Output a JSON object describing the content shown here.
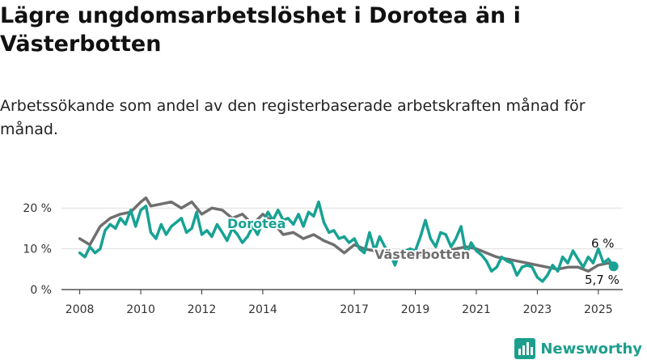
{
  "title": "Lägre ungdomsarbetslöshet i Dorotea än i Västerbotten",
  "subtitle": "Arbetssökande som andel av den registerbaserade arbetskraften månad för månad.",
  "brand": {
    "name": "Newsworthy",
    "icon": "bar-chart-logo-icon",
    "color": "#1c9e8c"
  },
  "chart_data": {
    "type": "line",
    "ylim": [
      0,
      25
    ],
    "xlim": [
      2007.4,
      2025.8
    ],
    "yticks": [
      0,
      10,
      20
    ],
    "ytick_labels": [
      "0 %",
      "10 %",
      "20 %"
    ],
    "xticks": [
      2008,
      2010,
      2012,
      2014,
      2017,
      2019,
      2021,
      2023,
      2025
    ],
    "xtick_labels": [
      "2008",
      "2010",
      "2012",
      "2014",
      "2017",
      "2019",
      "2021",
      "2023",
      "2025"
    ],
    "grid": true,
    "series": [
      {
        "name": "Västerbotten",
        "color": "#6f6f6f",
        "end_label": "6 %",
        "x": [
          2008.0,
          2008.33,
          2008.67,
          2009.0,
          2009.33,
          2009.67,
          2010.0,
          2010.17,
          2010.33,
          2010.67,
          2011.0,
          2011.33,
          2011.67,
          2012.0,
          2012.33,
          2012.67,
          2013.0,
          2013.33,
          2013.67,
          2014.0,
          2014.33,
          2014.67,
          2015.0,
          2015.33,
          2015.67,
          2016.0,
          2016.33,
          2016.67,
          2017.0,
          2017.33,
          2017.67,
          2018.0,
          2018.33,
          2018.67,
          2019.0,
          2019.33,
          2019.67,
          2020.0,
          2020.33,
          2020.67,
          2021.0,
          2021.33,
          2021.67,
          2022.0,
          2022.33,
          2022.67,
          2023.0,
          2023.33,
          2023.67,
          2024.0,
          2024.33,
          2024.67,
          2025.0,
          2025.33,
          2025.5
        ],
        "values": [
          12.5,
          11.0,
          15.5,
          17.5,
          18.5,
          19.0,
          21.5,
          22.5,
          20.5,
          21.0,
          21.5,
          20.0,
          21.5,
          18.5,
          20.0,
          19.5,
          17.5,
          18.5,
          16.0,
          18.5,
          16.5,
          13.5,
          14.0,
          12.5,
          13.5,
          12.0,
          11.0,
          9.0,
          11.0,
          10.0,
          9.5,
          9.0,
          9.0,
          8.5,
          8.0,
          9.0,
          8.5,
          9.5,
          10.0,
          10.5,
          10.0,
          9.0,
          8.0,
          7.5,
          7.0,
          6.5,
          6.0,
          5.5,
          5.0,
          5.5,
          5.5,
          4.5,
          6.0,
          6.5,
          6.0
        ]
      },
      {
        "name": "Dorotea",
        "color": "#17a293",
        "end_label": "5,7 %",
        "x": [
          2008.0,
          2008.17,
          2008.33,
          2008.5,
          2008.67,
          2008.83,
          2009.0,
          2009.17,
          2009.33,
          2009.5,
          2009.67,
          2009.83,
          2010.0,
          2010.17,
          2010.33,
          2010.5,
          2010.67,
          2010.83,
          2011.0,
          2011.17,
          2011.33,
          2011.5,
          2011.67,
          2011.83,
          2012.0,
          2012.17,
          2012.33,
          2012.5,
          2012.67,
          2012.83,
          2013.0,
          2013.17,
          2013.33,
          2013.5,
          2013.67,
          2013.83,
          2014.0,
          2014.17,
          2014.33,
          2014.5,
          2014.67,
          2014.83,
          2015.0,
          2015.17,
          2015.33,
          2015.5,
          2015.67,
          2015.83,
          2016.0,
          2016.17,
          2016.33,
          2016.5,
          2016.67,
          2016.83,
          2017.0,
          2017.17,
          2017.33,
          2017.5,
          2017.67,
          2017.83,
          2018.0,
          2018.17,
          2018.33,
          2018.5,
          2018.67,
          2018.83,
          2019.0,
          2019.17,
          2019.33,
          2019.5,
          2019.67,
          2019.83,
          2020.0,
          2020.17,
          2020.33,
          2020.5,
          2020.67,
          2020.83,
          2021.0,
          2021.17,
          2021.33,
          2021.5,
          2021.67,
          2021.83,
          2022.0,
          2022.17,
          2022.33,
          2022.5,
          2022.67,
          2022.83,
          2023.0,
          2023.17,
          2023.33,
          2023.5,
          2023.67,
          2023.83,
          2024.0,
          2024.17,
          2024.33,
          2024.5,
          2024.67,
          2024.83,
          2025.0,
          2025.17,
          2025.33,
          2025.5
        ],
        "values": [
          9.0,
          8.0,
          10.5,
          9.0,
          10.0,
          14.5,
          16.0,
          15.0,
          17.5,
          16.0,
          19.5,
          15.5,
          19.5,
          20.5,
          14.0,
          12.5,
          16.0,
          13.5,
          15.5,
          16.5,
          17.5,
          14.0,
          15.0,
          19.0,
          13.5,
          14.5,
          13.0,
          16.0,
          14.0,
          12.0,
          15.0,
          13.5,
          11.5,
          13.0,
          15.5,
          13.5,
          16.5,
          19.0,
          17.0,
          19.5,
          17.0,
          17.5,
          16.0,
          18.5,
          15.5,
          19.0,
          18.0,
          21.5,
          16.5,
          14.0,
          14.5,
          12.5,
          13.0,
          11.5,
          12.5,
          10.0,
          9.0,
          14.0,
          9.5,
          13.0,
          10.5,
          9.0,
          6.0,
          9.5,
          9.5,
          10.0,
          9.5,
          13.0,
          17.0,
          12.5,
          10.5,
          14.0,
          13.5,
          10.5,
          12.5,
          15.5,
          8.5,
          11.5,
          9.5,
          8.5,
          7.0,
          4.5,
          5.5,
          8.0,
          7.0,
          6.5,
          3.5,
          5.5,
          6.0,
          5.5,
          3.0,
          2.0,
          3.5,
          6.0,
          4.5,
          8.0,
          6.5,
          9.5,
          7.5,
          5.5,
          8.0,
          6.5,
          10.0,
          6.5,
          7.5,
          5.7
        ]
      }
    ]
  }
}
